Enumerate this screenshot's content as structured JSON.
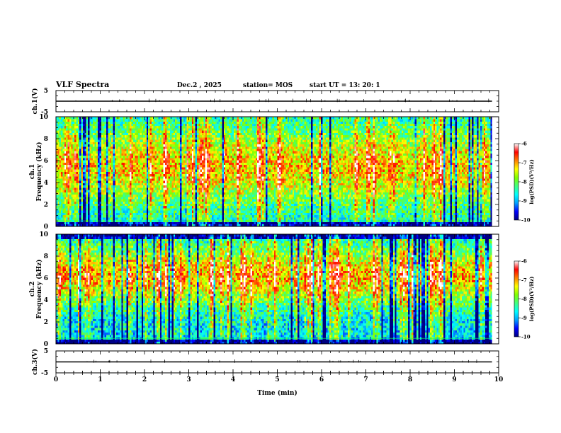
{
  "header": {
    "title": "VLF Spectra",
    "date": "Dec.2 , 2025",
    "station": "station= MOS",
    "start": "start  UT =   13: 20: 1"
  },
  "colors": {
    "spectrogram": [
      "#000080",
      "#0000ff",
      "#00a0ff",
      "#00ffff",
      "#40ff80",
      "#80ff00",
      "#ffff00",
      "#ff8000",
      "#ff0000",
      "#ffffff"
    ],
    "trace": "#000000",
    "band": "#00ff60"
  },
  "chart_data": [
    {
      "type": "line",
      "name": "ch1-waveform",
      "ylabel": "ch.1(V)",
      "ylim": [
        -5,
        5
      ],
      "yticks": [
        "5",
        "-5"
      ],
      "xlim": [
        0,
        10
      ],
      "values": [
        0,
        0,
        0,
        0,
        0,
        0,
        0,
        0,
        0,
        0,
        0
      ]
    },
    {
      "type": "heatmap",
      "name": "ch1-spectrogram",
      "ylabel": "ch.1",
      "ylabel2": "Frequency (kHz)",
      "ylim": [
        0,
        10
      ],
      "yticks": [
        "10",
        "8",
        "6",
        "4",
        "2",
        "0"
      ],
      "xlim": [
        0,
        10
      ],
      "duration_min": 9.85,
      "band_khz": [
        0.5,
        9.3
      ],
      "colorbar": {
        "label": "log(PSD)(V²/Hz)",
        "range": [
          -10,
          -6
        ],
        "ticks": [
          "-6",
          "-7",
          "-8",
          "-9",
          "-10"
        ]
      }
    },
    {
      "type": "heatmap",
      "name": "ch2-spectrogram",
      "ylabel": "ch.2",
      "ylabel2": "Frequency (kHz)",
      "ylim": [
        0,
        10
      ],
      "yticks": [
        "10",
        "8",
        "6",
        "4",
        "2",
        "0"
      ],
      "xlim": [
        0,
        10
      ],
      "duration_min": 9.85,
      "band_khz": [
        0.5,
        9.0
      ],
      "colorbar": {
        "label": "log(PSD)(V²/Hz)",
        "range": [
          -10,
          -6
        ],
        "ticks": [
          "-6",
          "-7",
          "-8",
          "-9",
          "-10"
        ]
      }
    },
    {
      "type": "line",
      "name": "ch3-waveform",
      "ylabel": "ch.3(V)",
      "ylim": [
        -5,
        5
      ],
      "yticks": [
        "5",
        "-5"
      ],
      "xlim": [
        0,
        10
      ],
      "values": [
        0,
        0,
        0,
        0,
        0,
        0,
        0,
        0,
        0,
        0,
        0
      ]
    }
  ],
  "x_axis": {
    "label": "Time  (min)",
    "ticks": [
      "0",
      "1",
      "2",
      "3",
      "4",
      "5",
      "6",
      "7",
      "8",
      "9",
      "10"
    ]
  }
}
